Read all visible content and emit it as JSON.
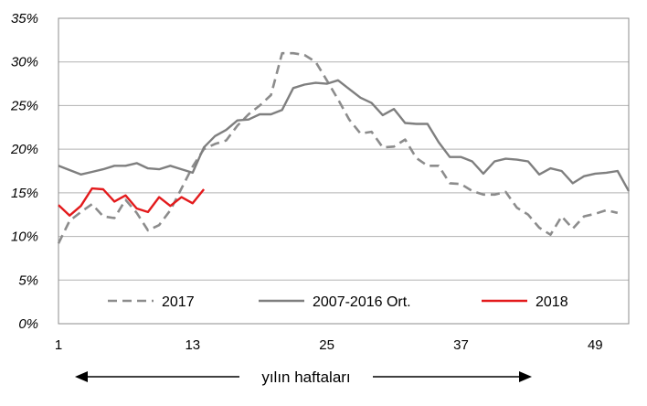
{
  "chart_data": {
    "type": "line",
    "xlabel": "yılın haftaları",
    "ylabel": "",
    "xlim": [
      1,
      52
    ],
    "ylim": [
      0,
      35
    ],
    "y_ticks": [
      0,
      5,
      10,
      15,
      20,
      25,
      30,
      35
    ],
    "y_tick_labels": [
      "0%",
      "5%",
      "10%",
      "15%",
      "20%",
      "25%",
      "30%",
      "35%"
    ],
    "x_ticks": [
      1,
      13,
      25,
      37,
      49
    ],
    "x_tick_labels": [
      "1",
      "13",
      "25",
      "37",
      "49"
    ],
    "grid": "horizontal",
    "legend_position": "bottom-inside",
    "series": [
      {
        "name": "2017",
        "color": "#8c8c8c",
        "style": "dashed",
        "x": [
          1,
          2,
          3,
          4,
          5,
          6,
          7,
          8,
          9,
          10,
          11,
          12,
          13,
          14,
          15,
          16,
          17,
          18,
          19,
          20,
          21,
          22,
          23,
          24,
          25,
          26,
          27,
          28,
          29,
          30,
          31,
          32,
          33,
          34,
          35,
          36,
          37,
          38,
          39,
          40,
          41,
          42,
          43,
          44,
          45,
          46,
          47,
          48,
          49,
          50,
          51,
          52
        ],
        "values": [
          9.2,
          11.8,
          12.8,
          13.7,
          12.3,
          12.1,
          14.2,
          12.7,
          10.7,
          11.3,
          13.0,
          15.5,
          18.0,
          20.0,
          20.6,
          21.0,
          22.7,
          24.0,
          25.0,
          26.2,
          31.0,
          31.0,
          30.8,
          30.0,
          27.9,
          25.7,
          23.4,
          21.8,
          22.0,
          20.2,
          20.3,
          21.1,
          19.0,
          18.1,
          18.1,
          16.1,
          16.0,
          15.2,
          14.8,
          14.8,
          15.1,
          13.3,
          12.5,
          11.0,
          10.2,
          12.3,
          10.9,
          12.3,
          12.6,
          13.0,
          12.7,
          null
        ]
      },
      {
        "name": "2007-2016 Ort.",
        "color": "#7f7f7f",
        "style": "solid",
        "x": [
          1,
          2,
          3,
          4,
          5,
          6,
          7,
          8,
          9,
          10,
          11,
          12,
          13,
          14,
          15,
          16,
          17,
          18,
          19,
          20,
          21,
          22,
          23,
          24,
          25,
          26,
          27,
          28,
          29,
          30,
          31,
          32,
          33,
          34,
          35,
          36,
          37,
          38,
          39,
          40,
          41,
          42,
          43,
          44,
          45,
          46,
          47,
          48,
          49,
          50,
          51,
          52
        ],
        "values": [
          18.1,
          17.6,
          17.1,
          17.4,
          17.7,
          18.1,
          18.1,
          18.4,
          17.8,
          17.7,
          18.1,
          17.7,
          17.3,
          20.2,
          21.5,
          22.2,
          23.3,
          23.4,
          24.0,
          24.0,
          24.5,
          27.0,
          27.4,
          27.6,
          27.5,
          27.9,
          26.9,
          25.9,
          25.3,
          23.9,
          24.6,
          23.0,
          22.9,
          22.9,
          20.8,
          19.1,
          19.1,
          18.6,
          17.2,
          18.6,
          18.9,
          18.8,
          18.6,
          17.1,
          17.8,
          17.5,
          16.1,
          16.9,
          17.2,
          17.3,
          17.5,
          15.2
        ]
      },
      {
        "name": "2018",
        "color": "#e31a1c",
        "style": "solid",
        "x": [
          1,
          2,
          3,
          4,
          5,
          6,
          7,
          8,
          9,
          10,
          11,
          12,
          13,
          14
        ],
        "values": [
          13.6,
          12.4,
          13.5,
          15.5,
          15.4,
          14.0,
          14.7,
          13.2,
          12.8,
          14.5,
          13.5,
          14.5,
          13.8,
          15.4
        ]
      }
    ]
  }
}
